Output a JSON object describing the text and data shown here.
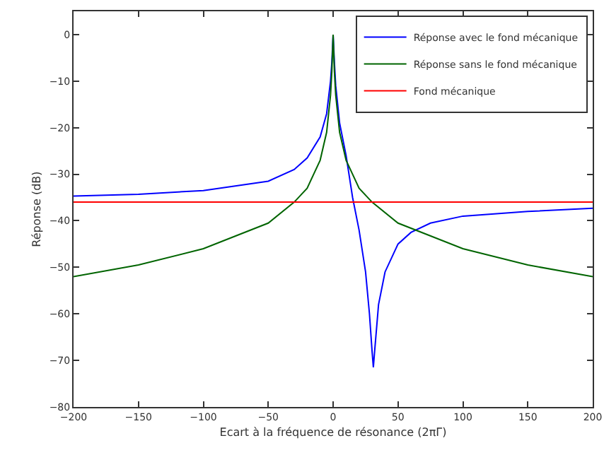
{
  "chart_data": {
    "type": "line",
    "xlabel": "Ecart à la fréquence de résonance (2πΓ)",
    "ylabel": "Réponse (dB)",
    "xlim": [
      -200,
      200
    ],
    "xticks": [
      -200,
      -150,
      -100,
      -50,
      0,
      50,
      100,
      150,
      200
    ],
    "ylim": [
      -80,
      5
    ],
    "yticks": [
      -80,
      -70,
      -60,
      -50,
      -40,
      -30,
      -20,
      -10,
      0
    ],
    "grid": false,
    "legend": "top right",
    "marker": "none",
    "line_style": "solid",
    "series": [
      {
        "name": "Réponse avec le fond mécanique",
        "color": "#0000ff",
        "x": [
          -200,
          -150,
          -100,
          -50,
          -30,
          -20,
          -10,
          -5,
          -2,
          -1,
          0,
          1,
          2,
          5,
          10,
          15,
          20,
          25,
          28,
          30,
          31,
          32,
          35,
          40,
          50,
          60,
          75,
          100,
          150,
          200
        ],
        "values": [
          -34.7,
          -34.3,
          -33.5,
          -31.5,
          -29,
          -26.5,
          -22,
          -17,
          -10,
          -6,
          0,
          -6,
          -11,
          -19,
          -26,
          -35,
          -42,
          -51,
          -60,
          -68,
          -71.5,
          -68,
          -58,
          -51,
          -45,
          -42.5,
          -40.5,
          -39,
          -38,
          -37.3
        ]
      },
      {
        "name": "Réponse sans le fond mécanique",
        "color": "#006400",
        "x": [
          -200,
          -150,
          -100,
          -50,
          -30,
          -20,
          -10,
          -5,
          -2,
          -1,
          0,
          1,
          2,
          5,
          10,
          20,
          30,
          50,
          100,
          150,
          200
        ],
        "values": [
          -52,
          -49.5,
          -46,
          -40.5,
          -36,
          -33,
          -27,
          -21,
          -13,
          -8,
          0,
          -8,
          -13,
          -21,
          -27,
          -33,
          -36,
          -40.5,
          -46,
          -49.5,
          -52
        ]
      },
      {
        "name": "Fond mécanique",
        "color": "#ff0000",
        "x": [
          -200,
          200
        ],
        "values": [
          -36,
          -36
        ]
      }
    ]
  }
}
